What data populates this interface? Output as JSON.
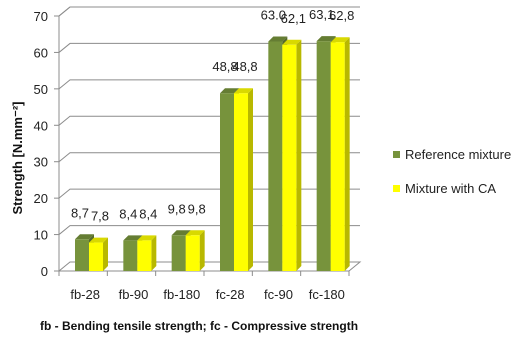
{
  "chart_data": {
    "type": "bar",
    "categories": [
      "fb-28",
      "fb-90",
      "fb-180",
      "fc-28",
      "fc-90",
      "fc-180"
    ],
    "series": [
      {
        "name": "Reference mixture",
        "color": "#77933c",
        "values": [
          8.7,
          8.4,
          9.8,
          48.8,
          63.0,
          63.1
        ],
        "labels": [
          "8,7",
          "8,4",
          "9,8",
          "48,8",
          "63.0",
          "63,1"
        ]
      },
      {
        "name": "Mixture with CA",
        "color": "#ffff00",
        "values": [
          7.8,
          8.4,
          9.8,
          48.8,
          62.1,
          62.8
        ],
        "labels": [
          "7,8",
          "8,4",
          "9,8",
          "48,8",
          "62,1",
          "62,8"
        ]
      }
    ],
    "ylabel": "Strength [N.mm⁻²]",
    "xlabel": "",
    "ylim": [
      0,
      70
    ],
    "yticks": [
      0,
      10,
      20,
      30,
      40,
      50,
      60,
      70
    ],
    "grid": true,
    "legend_position": "right",
    "footnote": "fb - Bending tensile strength; fc  - Compressive strength"
  }
}
